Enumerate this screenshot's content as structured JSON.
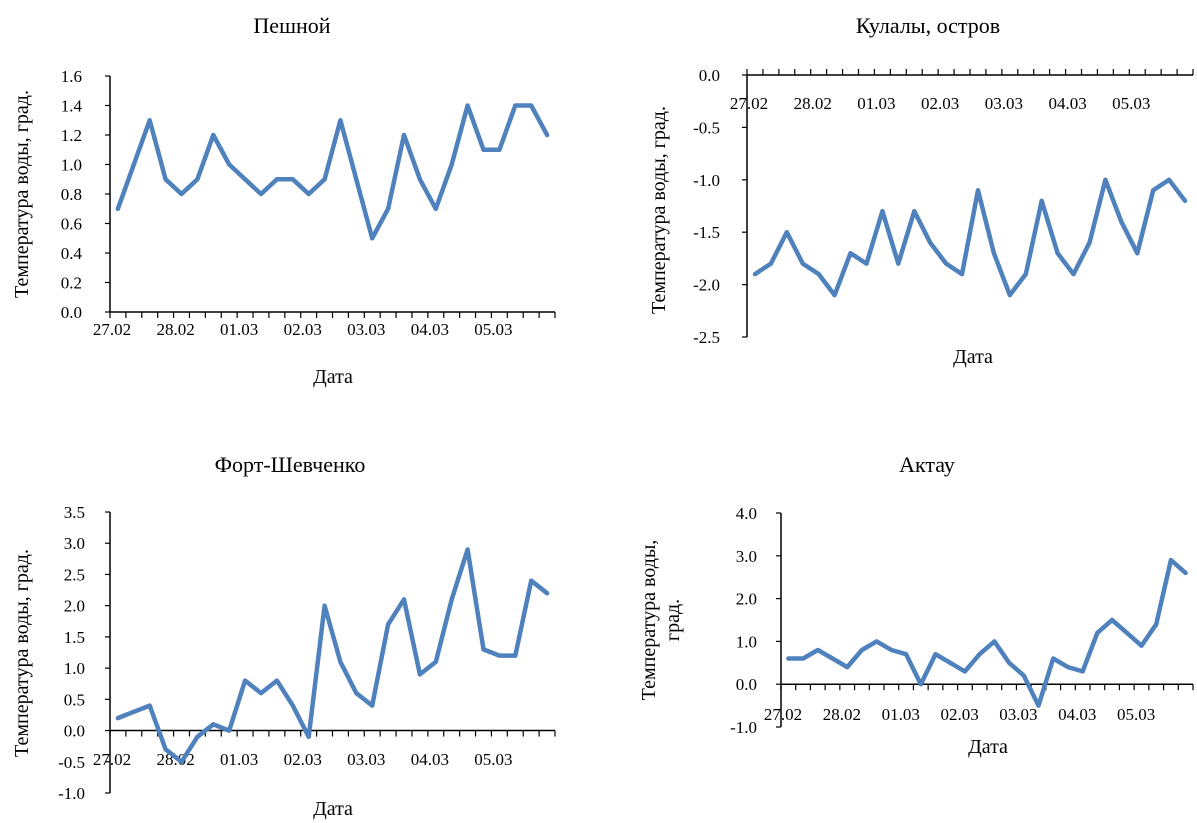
{
  "colors": {
    "line": "#4f81bd",
    "axis": "#000000"
  },
  "chart_data": [
    {
      "type": "line",
      "title": "Пешной",
      "xlabel": "Дата",
      "ylabel": [
        "Температура  воды, град."
      ],
      "yticks": [
        "0.0",
        "0.2",
        "0.4",
        "0.6",
        "0.8",
        "1.0",
        "1.2",
        "1.4",
        "1.6"
      ],
      "ylim": [
        0,
        1.6
      ],
      "xticks": [
        "27.02",
        "28.02",
        "01.03",
        "02.03",
        "03.03",
        "04.03",
        "05.03"
      ],
      "grid": false,
      "series": [
        {
          "values": [
            0.7,
            1.0,
            1.3,
            0.9,
            0.8,
            0.9,
            1.2,
            1.0,
            0.9,
            0.8,
            0.9,
            0.9,
            0.8,
            0.9,
            1.3,
            0.9,
            0.5,
            0.7,
            1.2,
            0.9,
            0.7,
            1.0,
            1.4,
            1.1,
            1.1,
            1.4,
            1.4,
            1.2
          ]
        }
      ]
    },
    {
      "type": "line",
      "title": "Кулалы,  остров",
      "xlabel": "Дата",
      "ylabel": [
        "Температура  воды, град."
      ],
      "yticks": [
        "0.0",
        "-0.5",
        "-1.0",
        "-1.5",
        "-2.0",
        "-2.5"
      ],
      "ylim": [
        -2.5,
        0
      ],
      "xticks": [
        "27.02",
        "28.02",
        "01.03",
        "02.03",
        "03.03",
        "04.03",
        "05.03"
      ],
      "grid": false,
      "series": [
        {
          "values": [
            -1.9,
            -1.8,
            -1.5,
            -1.8,
            -1.9,
            -2.1,
            -1.7,
            -1.8,
            -1.3,
            -1.8,
            -1.3,
            -1.6,
            -1.8,
            -1.9,
            -1.1,
            -1.7,
            -2.1,
            -1.9,
            -1.2,
            -1.7,
            -1.9,
            -1.6,
            -1.0,
            -1.4,
            -1.7,
            -1.1,
            -1.0,
            -1.2
          ]
        }
      ]
    },
    {
      "type": "line",
      "title": "Форт-Шевченко",
      "xlabel": "Дата",
      "ylabel": [
        "Температура  воды, град."
      ],
      "yticks": [
        "-1.0",
        "-0.5",
        "0.0",
        "0.5",
        "1.0",
        "1.5",
        "2.0",
        "2.5",
        "3.0",
        "3.5"
      ],
      "ylim": [
        -1.0,
        3.5
      ],
      "xticks": [
        "27.02",
        "28.02",
        "01.03",
        "02.03",
        "03.03",
        "04.03",
        "05.03"
      ],
      "grid": false,
      "series": [
        {
          "values": [
            0.2,
            0.3,
            0.4,
            -0.3,
            -0.5,
            -0.1,
            0.1,
            0.0,
            0.8,
            0.6,
            0.8,
            0.4,
            -0.1,
            2.0,
            1.1,
            0.6,
            0.4,
            1.7,
            2.1,
            0.9,
            1.1,
            2.1,
            2.9,
            1.3,
            1.2,
            1.2,
            2.4,
            2.2
          ]
        }
      ]
    },
    {
      "type": "line",
      "title": "Актау",
      "xlabel": "Дата",
      "ylabel": [
        "Температура  воды,",
        "град."
      ],
      "yticks": [
        "-1.0",
        "0.0",
        "1.0",
        "2.0",
        "3.0",
        "4.0"
      ],
      "ylim": [
        -1.0,
        4.0
      ],
      "xticks": [
        "27.02",
        "28.02",
        "01.03",
        "02.03",
        "03.03",
        "04.03",
        "05.03"
      ],
      "grid": false,
      "series": [
        {
          "values": [
            0.6,
            0.6,
            0.8,
            0.6,
            0.4,
            0.8,
            1.0,
            0.8,
            0.7,
            0.0,
            0.7,
            0.5,
            0.3,
            0.7,
            1.0,
            0.5,
            0.2,
            -0.5,
            0.6,
            0.4,
            0.3,
            1.2,
            1.5,
            1.2,
            0.9,
            1.4,
            2.9,
            2.6
          ]
        }
      ]
    }
  ]
}
